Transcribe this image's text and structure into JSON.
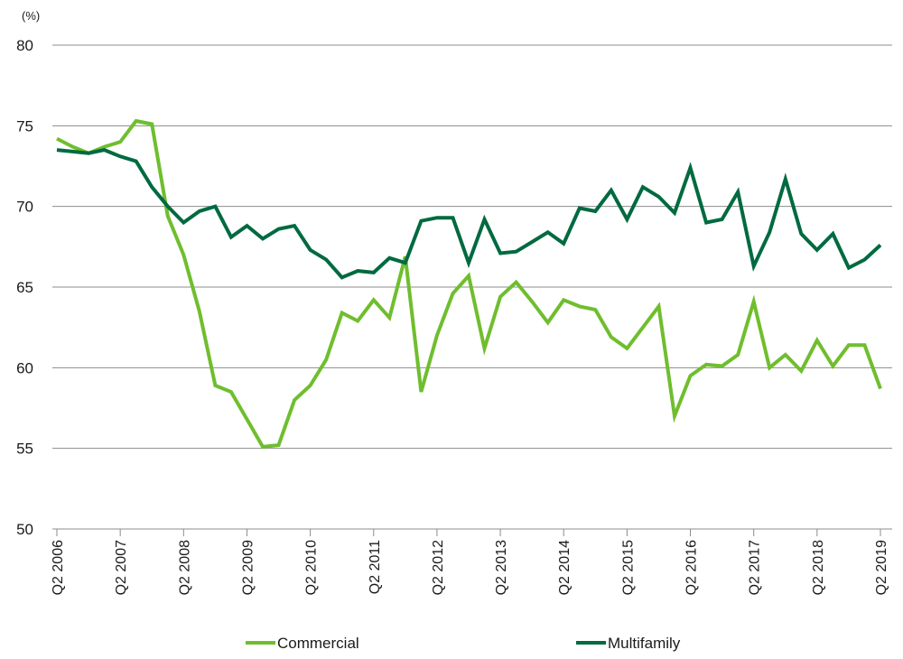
{
  "chart_data": {
    "type": "line",
    "unit_label": "(%)",
    "ylim": [
      50,
      80
    ],
    "y_ticks": [
      50,
      55,
      60,
      65,
      70,
      75,
      80
    ],
    "grid": true,
    "legend_position": "bottom",
    "x_tick_labels": [
      "Q2 2006",
      "Q2 2007",
      "Q2 2008",
      "Q2 2009",
      "Q2 2010",
      "Q2 2011",
      "Q2 2012",
      "Q2 2013",
      "Q2 2014",
      "Q2 2015",
      "Q2 2016",
      "Q2 2017",
      "Q2 2018",
      "Q2 2019"
    ],
    "x": [
      "Q2 2006",
      "Q3 2006",
      "Q4 2006",
      "Q1 2007",
      "Q2 2007",
      "Q3 2007",
      "Q4 2007",
      "Q1 2008",
      "Q2 2008",
      "Q3 2008",
      "Q4 2008",
      "Q1 2009",
      "Q2 2009",
      "Q3 2009",
      "Q4 2009",
      "Q1 2010",
      "Q2 2010",
      "Q3 2010",
      "Q4 2010",
      "Q1 2011",
      "Q2 2011",
      "Q3 2011",
      "Q4 2011",
      "Q1 2012",
      "Q2 2012",
      "Q3 2012",
      "Q4 2012",
      "Q1 2013",
      "Q2 2013",
      "Q3 2013",
      "Q4 2013",
      "Q1 2014",
      "Q2 2014",
      "Q3 2014",
      "Q4 2014",
      "Q1 2015",
      "Q2 2015",
      "Q3 2015",
      "Q4 2015",
      "Q1 2016",
      "Q2 2016",
      "Q3 2016",
      "Q4 2016",
      "Q1 2017",
      "Q2 2017",
      "Q3 2017",
      "Q4 2017",
      "Q1 2018",
      "Q2 2018",
      "Q3 2018",
      "Q4 2018",
      "Q1 2019",
      "Q2 2019"
    ],
    "series": [
      {
        "name": "Commercial",
        "color": "#6fbe2e",
        "values": [
          74.2,
          73.7,
          73.3,
          73.7,
          74.0,
          75.3,
          75.1,
          69.4,
          67.0,
          63.5,
          58.9,
          58.5,
          56.8,
          55.1,
          55.2,
          58.0,
          58.9,
          60.5,
          63.4,
          62.9,
          64.2,
          63.1,
          66.9,
          58.5,
          62.0,
          64.6,
          65.7,
          61.2,
          64.4,
          65.3,
          64.1,
          62.8,
          64.2,
          63.8,
          63.6,
          61.9,
          61.2,
          62.5,
          63.8,
          57.0,
          59.5,
          60.2,
          60.1,
          60.8,
          64.1,
          60.0,
          60.8,
          59.8,
          61.7,
          60.1,
          61.4,
          61.4,
          58.7
        ]
      },
      {
        "name": "Multifamily",
        "color": "#006a40",
        "values": [
          73.5,
          73.4,
          73.3,
          73.5,
          73.1,
          72.8,
          71.2,
          70.0,
          69.0,
          69.7,
          70.0,
          68.1,
          68.8,
          68.0,
          68.6,
          68.8,
          67.3,
          66.7,
          65.6,
          66.0,
          65.9,
          66.8,
          66.5,
          69.1,
          69.3,
          69.3,
          66.5,
          69.2,
          67.1,
          67.2,
          67.8,
          68.4,
          67.7,
          69.9,
          69.7,
          71.0,
          69.2,
          71.2,
          70.6,
          69.6,
          72.4,
          69.0,
          69.2,
          70.9,
          66.3,
          68.4,
          71.7,
          68.3,
          67.3,
          68.3,
          66.2,
          66.7,
          67.6
        ]
      }
    ]
  }
}
